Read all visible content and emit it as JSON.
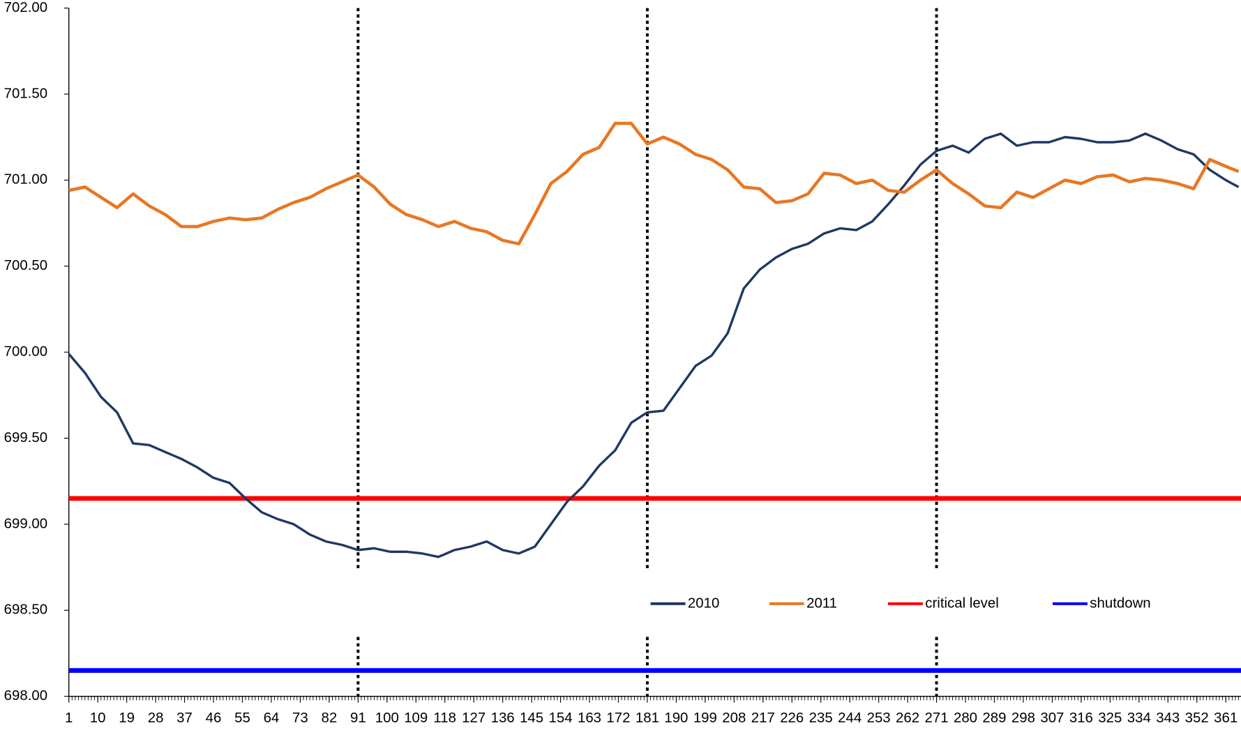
{
  "chart_data": {
    "type": "line",
    "x": [
      1,
      6,
      11,
      16,
      21,
      26,
      31,
      36,
      41,
      46,
      51,
      56,
      61,
      66,
      71,
      76,
      81,
      86,
      91,
      96,
      101,
      106,
      111,
      116,
      121,
      126,
      131,
      136,
      141,
      146,
      151,
      156,
      161,
      166,
      171,
      176,
      181,
      186,
      191,
      196,
      201,
      206,
      211,
      216,
      221,
      226,
      231,
      236,
      241,
      246,
      251,
      256,
      261,
      266,
      271,
      276,
      281,
      286,
      291,
      296,
      301,
      306,
      311,
      316,
      321,
      326,
      331,
      336,
      341,
      346,
      351,
      356,
      361,
      365
    ],
    "series": [
      {
        "name": "2010",
        "color": "#1f3864",
        "values": [
          699.99,
          699.88,
          699.74,
          699.65,
          699.47,
          699.46,
          699.42,
          699.38,
          699.33,
          699.27,
          699.24,
          699.15,
          699.07,
          699.03,
          699.0,
          698.94,
          698.9,
          698.88,
          698.85,
          698.86,
          698.84,
          698.84,
          698.83,
          698.81,
          698.85,
          698.87,
          698.9,
          698.85,
          698.83,
          698.87,
          699.0,
          699.13,
          699.22,
          699.34,
          699.43,
          699.59,
          699.65,
          699.66,
          699.79,
          699.92,
          699.98,
          700.11,
          700.37,
          700.48,
          700.55,
          700.6,
          700.63,
          700.69,
          700.72,
          700.71,
          700.76,
          700.86,
          700.97,
          701.09,
          701.17,
          701.2,
          701.16,
          701.24,
          701.27,
          701.2,
          701.22,
          701.22,
          701.25,
          701.24,
          701.22,
          701.22,
          701.23,
          701.27,
          701.23,
          701.18,
          701.15,
          701.06,
          701.0,
          700.96
        ]
      },
      {
        "name": "2011",
        "color": "#e87722",
        "values": [
          700.94,
          700.96,
          700.9,
          700.84,
          700.92,
          700.85,
          700.8,
          700.73,
          700.73,
          700.76,
          700.78,
          700.77,
          700.78,
          700.83,
          700.87,
          700.9,
          700.95,
          700.99,
          701.03,
          700.96,
          700.86,
          700.8,
          700.77,
          700.73,
          700.76,
          700.72,
          700.7,
          700.65,
          700.63,
          700.8,
          700.98,
          701.05,
          701.15,
          701.19,
          701.33,
          701.33,
          701.21,
          701.25,
          701.21,
          701.15,
          701.12,
          701.06,
          700.96,
          700.95,
          700.87,
          700.88,
          700.92,
          701.04,
          701.03,
          700.98,
          701.0,
          700.94,
          700.93,
          701.0,
          701.06,
          700.98,
          700.92,
          700.85,
          700.84,
          700.93,
          700.9,
          700.95,
          701.0,
          700.98,
          701.02,
          701.03,
          700.99,
          701.01,
          701.0,
          700.98,
          700.95,
          701.12,
          701.08,
          701.05
        ]
      }
    ],
    "reference_lines": [
      {
        "name": "critical level",
        "color": "#ff0000",
        "value": 699.15
      },
      {
        "name": "shutdown",
        "color": "#0000ff",
        "value": 698.15
      }
    ],
    "vlines": [
      91,
      181,
      271
    ],
    "xlim": [
      1,
      365
    ],
    "xticks": [
      1,
      10,
      19,
      28,
      37,
      46,
      55,
      64,
      73,
      82,
      91,
      100,
      109,
      118,
      127,
      136,
      145,
      154,
      163,
      172,
      181,
      190,
      199,
      208,
      217,
      226,
      235,
      244,
      253,
      262,
      271,
      280,
      289,
      298,
      307,
      316,
      325,
      334,
      343,
      352,
      361
    ],
    "ylim": [
      698,
      702
    ],
    "yticks": [
      {
        "value": 698,
        "label": "698.00"
      },
      {
        "value": 698.5,
        "label": "698.50"
      },
      {
        "value": 699,
        "label": "699.00"
      },
      {
        "value": 699.5,
        "label": "699.50"
      },
      {
        "value": 700,
        "label": "700.00"
      },
      {
        "value": 700.5,
        "label": "700.50"
      },
      {
        "value": 701,
        "label": "701.00"
      },
      {
        "value": 701.5,
        "label": "701.50"
      },
      {
        "value": 702,
        "label": "702.00"
      }
    ],
    "legend": "bottom-center"
  }
}
